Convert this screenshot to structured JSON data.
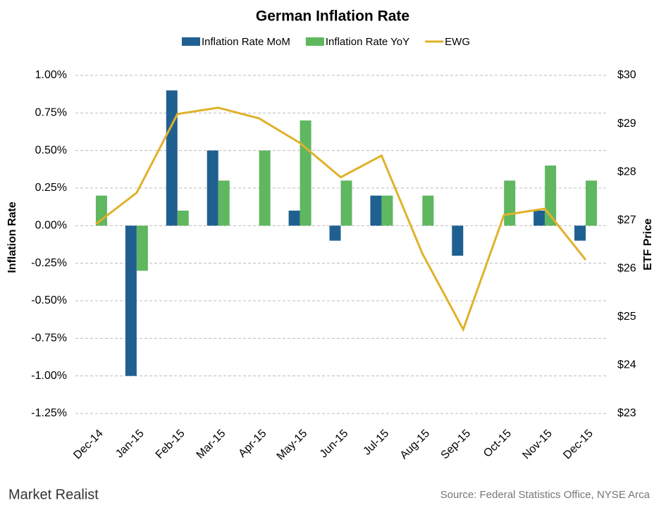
{
  "chart_data": {
    "type": "bar_line",
    "title": "German Inflation Rate",
    "y_label": "Inflation Rate",
    "y2_label": "ETF Price",
    "source": "Source: Federal Statistics Office, NYSE Arca",
    "brand": "Market Realist",
    "categories": [
      "Dec-14",
      "Jan-15",
      "Feb-15",
      "Mar-15",
      "Apr-15",
      "May-15",
      "Jun-15",
      "Jul-15",
      "Aug-15",
      "Sep-15",
      "Oct-15",
      "Nov-15",
      "Dec-15"
    ],
    "series": [
      {
        "name": "Inflation Rate MoM",
        "color": "#1f6091",
        "type": "bar",
        "values": [
          0,
          -1.0,
          0.9,
          0.5,
          0,
          0.1,
          -0.1,
          0.2,
          0,
          -0.2,
          0,
          0.1,
          -0.1
        ]
      },
      {
        "name": "Inflation Rate YoY",
        "color": "#5fb760",
        "type": "bar",
        "values": [
          0.2,
          -0.3,
          0.1,
          0.3,
          0.5,
          0.7,
          0.3,
          0.2,
          0.2,
          0,
          0.3,
          0.4,
          0.3
        ]
      },
      {
        "name": "EWG",
        "color": "#e0b12a",
        "type": "line",
        "axis": "y2",
        "values": [
          26.92,
          27.57,
          29.2,
          29.33,
          29.11,
          28.6,
          27.89,
          28.34,
          26.31,
          24.74,
          27.11,
          27.24,
          26.18
        ]
      }
    ],
    "ylim": [
      -1.25,
      1.0
    ],
    "yticks": [
      {
        "value": -1.25,
        "label": "-1.25%"
      },
      {
        "value": -1.0,
        "label": "-1.00%"
      },
      {
        "value": -0.75,
        "label": "-0.75%"
      },
      {
        "value": -0.5,
        "label": "-0.50%"
      },
      {
        "value": -0.25,
        "label": "-0.25%"
      },
      {
        "value": 0,
        "label": "0.00%"
      },
      {
        "value": 0.25,
        "label": "0.25%"
      },
      {
        "value": 0.5,
        "label": "0.50%"
      },
      {
        "value": 0.75,
        "label": "0.75%"
      },
      {
        "value": 1.0,
        "label": "1.00%"
      }
    ],
    "y2lim": [
      23,
      30
    ],
    "y2ticks": [
      {
        "value": 23,
        "label": "$23"
      },
      {
        "value": 24,
        "label": "$24"
      },
      {
        "value": 25,
        "label": "$25"
      },
      {
        "value": 26,
        "label": "$26"
      },
      {
        "value": 27,
        "label": "$27"
      },
      {
        "value": 28,
        "label": "$28"
      },
      {
        "value": 29,
        "label": "$29"
      },
      {
        "value": 30,
        "label": "$30"
      }
    ],
    "grid": true
  }
}
